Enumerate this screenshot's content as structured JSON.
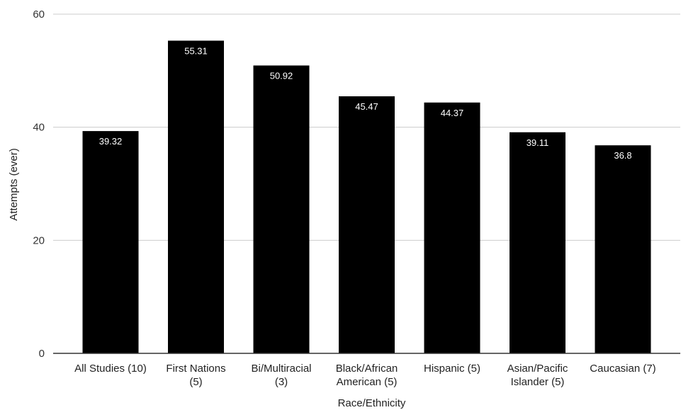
{
  "chart_data": {
    "type": "bar",
    "title": "",
    "xlabel": "Race/Ethnicity",
    "ylabel": "Attempts (ever)",
    "ylim": [
      0,
      60
    ],
    "yticks": [
      0,
      20,
      40,
      60
    ],
    "grid": true,
    "legend": "none",
    "bar_color": "#000000",
    "categories": [
      [
        "All Studies (10)"
      ],
      [
        "First Nations",
        "(5)"
      ],
      [
        "Bi/Multiracial",
        "(3)"
      ],
      [
        "Black/African",
        "American (5)"
      ],
      [
        "Hispanic (5)"
      ],
      [
        "Asian/Pacific",
        "Islander (5)"
      ],
      [
        "Caucasian (7)"
      ]
    ],
    "values": [
      39.32,
      55.31,
      50.92,
      45.47,
      44.37,
      39.11,
      36.8
    ],
    "data_labels": [
      "39.32",
      "55.31",
      "50.92",
      "45.47",
      "44.37",
      "39.11",
      "36.8"
    ]
  }
}
